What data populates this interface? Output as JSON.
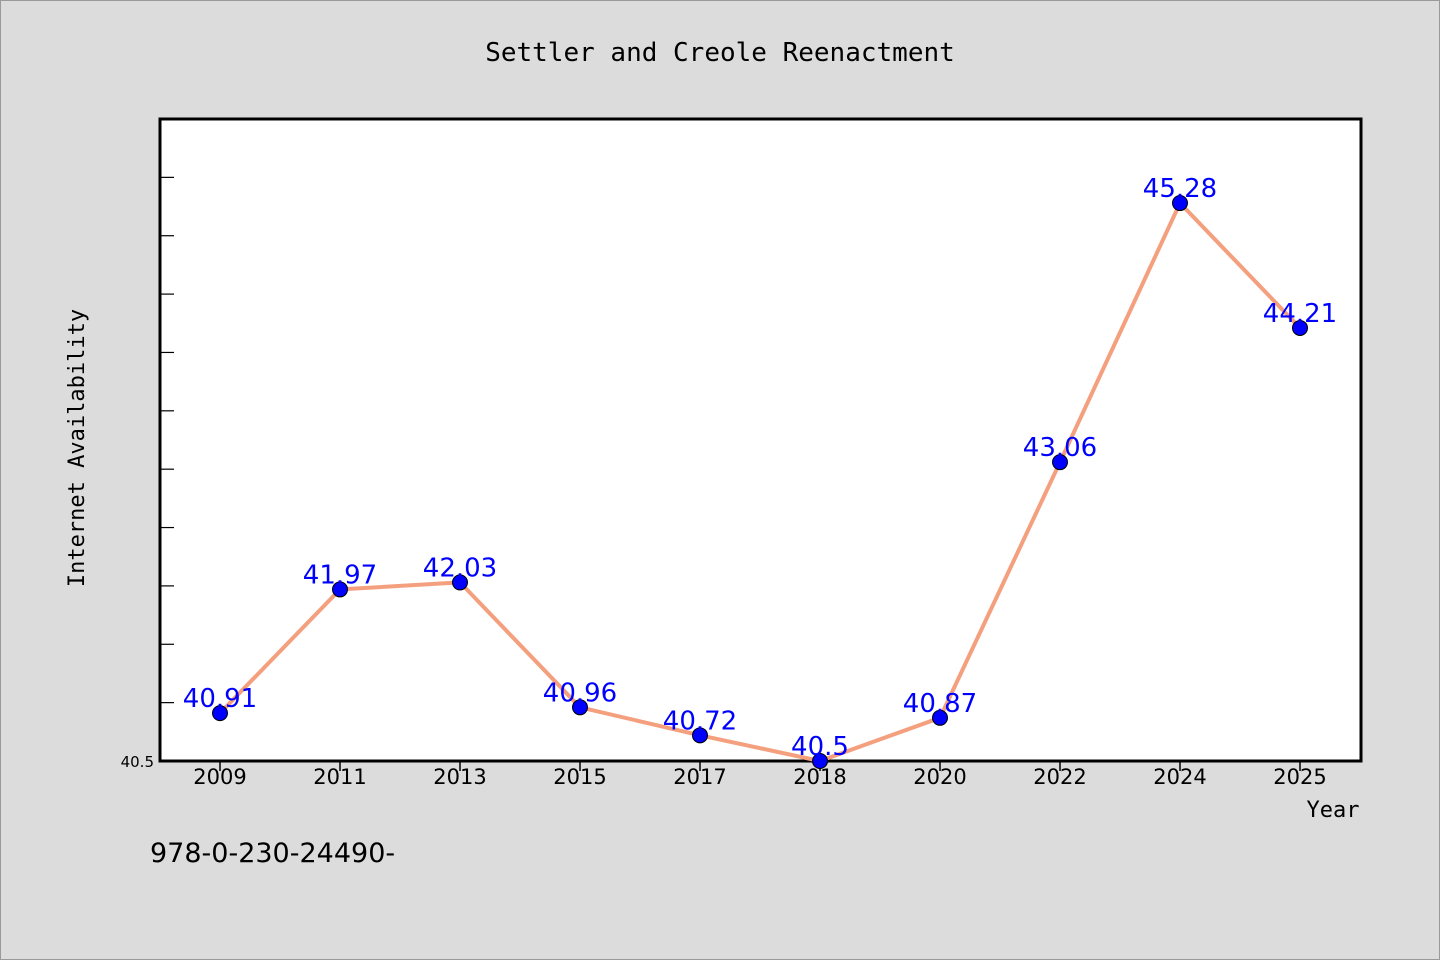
{
  "chart_data": {
    "type": "line",
    "title": "Settler and Creole Reenactment",
    "xlabel": "Year",
    "ylabel": "Internet Availability",
    "categories": [
      "2009",
      "2011",
      "2013",
      "2015",
      "2017",
      "2018",
      "2020",
      "2022",
      "2024",
      "2025"
    ],
    "values": [
      40.91,
      41.97,
      42.03,
      40.96,
      40.72,
      40.5,
      40.87,
      43.06,
      45.28,
      44.21
    ],
    "data_labels": [
      "40.91",
      "41.97",
      "42.03",
      "40.96",
      "40.72",
      "40.5",
      "40.87",
      "43.06",
      "45.28",
      "44.21"
    ],
    "y_tick_labels": [
      "40.5"
    ],
    "ylim": [
      40.5,
      46.0
    ],
    "line_color": "#f4a07e",
    "marker_color": "#0000ff",
    "label_color": "#0000ff",
    "grid": false,
    "legend": "none"
  },
  "footer_text": "978-0-230-24490-"
}
